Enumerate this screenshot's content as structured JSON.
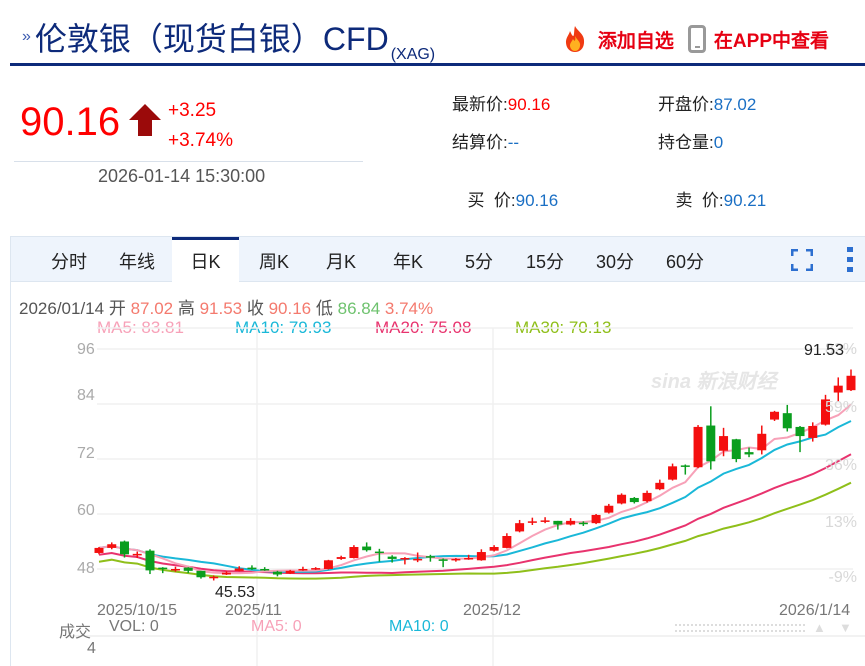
{
  "header": {
    "title": "伦敦银（现货白银）CFD",
    "title_sub": "(XAG)",
    "add_favorite_label": "添加自选",
    "view_in_app_label": "在APP中查看"
  },
  "quote": {
    "price": "90.16",
    "change": "+3.25",
    "change_pct": "+3.74%",
    "timestamp": "2026-01-14 15:30:00",
    "direction": "up"
  },
  "stats": {
    "latest_label": "最新价:",
    "latest_value": "90.16",
    "open_label": "开盘价:",
    "open_value": "87.02",
    "settle_label": "结算价:",
    "settle_value": "--",
    "position_label": "持仓量:",
    "position_value": "0",
    "bid_label": "买  价:",
    "bid_value": "90.16",
    "ask_label": "卖  价:",
    "ask_value": "90.21"
  },
  "tabs": [
    {
      "label": "分时",
      "active": false
    },
    {
      "label": "年线",
      "active": false
    },
    {
      "label": "日K",
      "active": true
    },
    {
      "label": "周K",
      "active": false
    },
    {
      "label": "月K",
      "active": false
    },
    {
      "label": "年K",
      "active": false
    },
    {
      "label": "5分",
      "active": false
    },
    {
      "label": "15分",
      "active": false
    },
    {
      "label": "30分",
      "active": false
    },
    {
      "label": "60分",
      "active": false
    }
  ],
  "info": {
    "date": "2026/01/14",
    "open_label": "开",
    "open": "87.02",
    "high_label": "高",
    "high": "91.53",
    "close_label": "收",
    "close": "90.16",
    "low_label": "低",
    "low": "86.84",
    "pct": "3.74%"
  },
  "ma": {
    "ma5": "MA5: 83.81",
    "ma10": "MA10: 79.93",
    "ma20": "MA20: 75.08",
    "ma30": "MA30: 70.13"
  },
  "volume": {
    "label": "成交",
    "vol": "VOL: 0",
    "ma5": "MA5: 0",
    "ma10": "MA10: 0",
    "axis_value": "4"
  },
  "colors": {
    "up": "#f40f0f",
    "down": "#0a9e1e",
    "ma5": "#f7a1b8",
    "ma10": "#1ab8d8",
    "ma20": "#e8336e",
    "ma30": "#8fbf1a",
    "brand": "#0d2a7a",
    "link": "#1a6fc4"
  },
  "chart_data": {
    "type": "candlestick",
    "title": "伦敦银（现货白银）CFD 日K",
    "ylim": [
      43,
      97
    ],
    "yticks": [
      96,
      84,
      72,
      60,
      48
    ],
    "right_pct_ticks": [
      "82%",
      "59%",
      "36%",
      "13%",
      "-9%"
    ],
    "xticks": [
      "2025/10/15",
      "2025/11",
      "2025/12",
      "2026/1/14"
    ],
    "annotations": {
      "max": "91.53",
      "min": "45.53"
    },
    "watermark": "sina 新浪财经",
    "candles": [
      [
        51.5,
        52.6,
        51.2,
        52.8
      ],
      [
        52.6,
        53.4,
        52.3,
        53.8
      ],
      [
        54.0,
        51.2,
        50.5,
        54.2
      ],
      [
        51.0,
        51.3,
        50.4,
        51.8
      ],
      [
        52.0,
        47.7,
        46.9,
        52.3
      ],
      [
        48.3,
        48.0,
        47.1,
        48.4
      ],
      [
        47.8,
        48.0,
        47.4,
        48.5
      ],
      [
        48.3,
        47.6,
        47.1,
        48.4
      ],
      [
        47.6,
        46.2,
        45.9,
        47.6
      ],
      [
        46.2,
        46.3,
        45.5,
        46.6
      ],
      [
        46.8,
        47.2,
        46.7,
        47.5
      ],
      [
        47.6,
        48.1,
        47.5,
        48.6
      ],
      [
        48.3,
        48.1,
        47.8,
        48.8
      ],
      [
        48.0,
        47.8,
        47.6,
        48.4
      ],
      [
        47.4,
        46.8,
        46.4,
        47.6
      ],
      [
        47.0,
        47.6,
        46.9,
        47.8
      ],
      [
        47.8,
        48.0,
        47.6,
        48.5
      ],
      [
        47.9,
        48.2,
        47.8,
        48.4
      ],
      [
        48.0,
        49.9,
        47.9,
        50.0
      ],
      [
        50.2,
        50.6,
        50.0,
        50.9
      ],
      [
        50.4,
        52.8,
        50.3,
        53.2
      ],
      [
        52.9,
        52.1,
        51.8,
        53.8
      ],
      [
        51.8,
        51.5,
        49.6,
        52.4
      ],
      [
        50.7,
        50.2,
        49.4,
        51.0
      ],
      [
        50.3,
        50.4,
        49.0,
        50.6
      ],
      [
        50.0,
        50.2,
        49.5,
        51.6
      ],
      [
        50.8,
        50.6,
        49.6,
        51.1
      ],
      [
        50.1,
        49.9,
        48.4,
        50.3
      ],
      [
        50.0,
        50.2,
        49.6,
        50.4
      ],
      [
        50.2,
        50.4,
        50.0,
        51.1
      ],
      [
        49.9,
        51.7,
        49.8,
        52.3
      ],
      [
        52.0,
        52.8,
        51.8,
        53.2
      ],
      [
        52.6,
        55.2,
        52.5,
        55.8
      ],
      [
        56.2,
        58.0,
        56.0,
        58.7
      ],
      [
        58.2,
        58.4,
        57.6,
        59.2
      ],
      [
        58.5,
        58.6,
        58.0,
        59.3
      ],
      [
        58.5,
        57.7,
        56.6,
        58.5
      ],
      [
        57.7,
        58.5,
        57.5,
        59.1
      ],
      [
        58.1,
        58.0,
        57.4,
        58.4
      ],
      [
        58.0,
        59.8,
        57.8,
        60.0
      ],
      [
        60.3,
        61.8,
        60.1,
        62.2
      ],
      [
        62.3,
        64.2,
        62.1,
        64.5
      ],
      [
        63.5,
        62.6,
        62.3,
        63.7
      ],
      [
        62.8,
        64.6,
        62.5,
        65.1
      ],
      [
        65.4,
        66.8,
        65.2,
        67.5
      ],
      [
        67.5,
        70.4,
        67.3,
        71.0
      ],
      [
        70.6,
        70.3,
        68.6,
        70.8
      ],
      [
        70.2,
        79.0,
        70.0,
        79.4
      ],
      [
        79.3,
        71.5,
        69.7,
        83.5
      ],
      [
        73.8,
        77.0,
        72.6,
        78.8
      ],
      [
        76.3,
        72.0,
        71.3,
        76.4
      ],
      [
        73.5,
        73.0,
        72.4,
        74.5
      ],
      [
        73.9,
        77.5,
        73.0,
        79.3
      ],
      [
        80.6,
        82.3,
        80.3,
        82.5
      ],
      [
        82.0,
        78.7,
        78.0,
        83.8
      ],
      [
        79.0,
        77.0,
        73.5,
        79.2
      ],
      [
        76.6,
        79.2,
        75.8,
        80.0
      ],
      [
        79.5,
        85.0,
        79.3,
        86.0
      ],
      [
        86.5,
        88.0,
        84.5,
        89.8
      ],
      [
        87.02,
        90.16,
        86.84,
        91.53
      ]
    ]
  }
}
